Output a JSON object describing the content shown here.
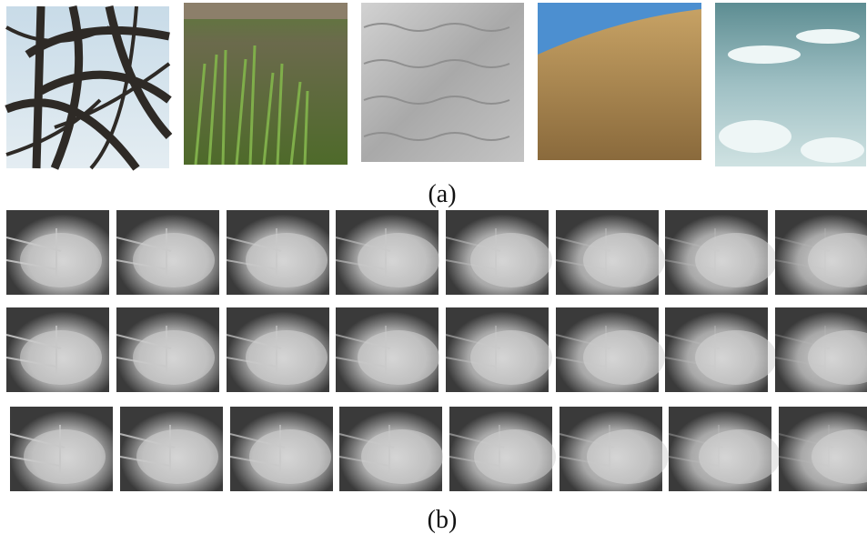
{
  "figure": {
    "caption_a": "(a)",
    "caption_b": "(b)"
  }
}
